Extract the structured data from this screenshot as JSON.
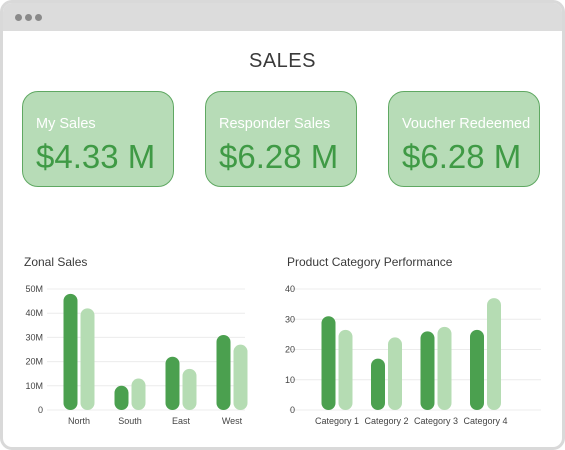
{
  "window": {
    "controls": [
      "dot",
      "dot",
      "dot"
    ]
  },
  "page_title": "SALES",
  "kpis": [
    {
      "label": "My Sales",
      "value": "$4.33 M"
    },
    {
      "label": "Responder Sales",
      "value": "$6.28 M"
    },
    {
      "label": "Voucher Redeemed",
      "value": "$6.28 M"
    }
  ],
  "colors": {
    "dark_bar": "#4ba04f",
    "light_bar": "#b5dcb3",
    "kpi_bg": "#b7dcb7",
    "kpi_border": "#5fa862"
  },
  "chart_data": [
    {
      "type": "bar",
      "title": "Zonal Sales",
      "categories": [
        "North",
        "South",
        "East",
        "West"
      ],
      "series": [
        {
          "values": [
            48,
            10,
            22,
            31
          ]
        },
        {
          "values": [
            42,
            13,
            17,
            27
          ]
        }
      ],
      "yticks": [
        "0",
        "10M",
        "20M",
        "30M",
        "40M",
        "50M"
      ],
      "ylim": [
        0,
        50
      ],
      "grid": true
    },
    {
      "type": "bar",
      "title": "Product Category Performance",
      "categories": [
        "Category 1",
        "Category 2",
        "Category 3",
        "Category 4"
      ],
      "series": [
        {
          "values": [
            31,
            17,
            26,
            26.5
          ]
        },
        {
          "values": [
            26.5,
            24,
            27.5,
            37
          ]
        }
      ],
      "yticks": [
        "0",
        "10",
        "20",
        "30",
        "40"
      ],
      "ylim": [
        0,
        40
      ],
      "grid": true
    }
  ]
}
